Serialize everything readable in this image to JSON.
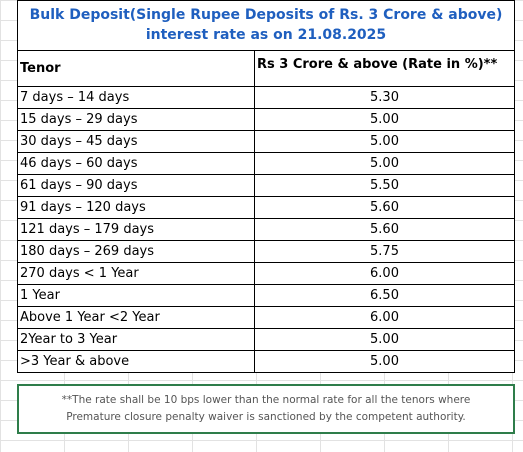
{
  "title": {
    "line1": "Bulk Deposit(Single Rupee Deposits of Rs. 3 Crore & above)",
    "line2": "interest rate as on 21.08.2025"
  },
  "table": {
    "headers": {
      "tenor": "Tenor",
      "rate": "Rs 3 Crore & above  (Rate in %)**"
    },
    "rows": [
      {
        "tenor": "7 days – 14 days",
        "rate": "5.30"
      },
      {
        "tenor": "15 days – 29 days",
        "rate": "5.00"
      },
      {
        "tenor": "30 days – 45 days",
        "rate": "5.00"
      },
      {
        "tenor": "46 days – 60 days",
        "rate": "5.00"
      },
      {
        "tenor": "61 days – 90 days",
        "rate": "5.50"
      },
      {
        "tenor": "91 days – 120 days",
        "rate": "5.60"
      },
      {
        "tenor": "121 days – 179 days",
        "rate": "5.60"
      },
      {
        "tenor": "180 days – 269 days",
        "rate": "5.75"
      },
      {
        "tenor": "270 days < 1 Year",
        "rate": "6.00"
      },
      {
        "tenor": "1 Year",
        "rate": "6.50"
      },
      {
        "tenor": "Above 1 Year  <2 Year",
        "rate": "6.00"
      },
      {
        "tenor": "2Year to 3 Year",
        "rate": "5.00"
      },
      {
        "tenor": ">3 Year & above",
        "rate": "5.00"
      }
    ]
  },
  "note": {
    "line1": "**The rate shall be 10 bps lower than the normal rate for all the tenors where",
    "line2": "Premature closure penalty waiver is sanctioned by the competent authority."
  },
  "colors": {
    "title_text": "#1f5fbf",
    "note_border": "#2e7d4a",
    "note_text": "#555555"
  }
}
